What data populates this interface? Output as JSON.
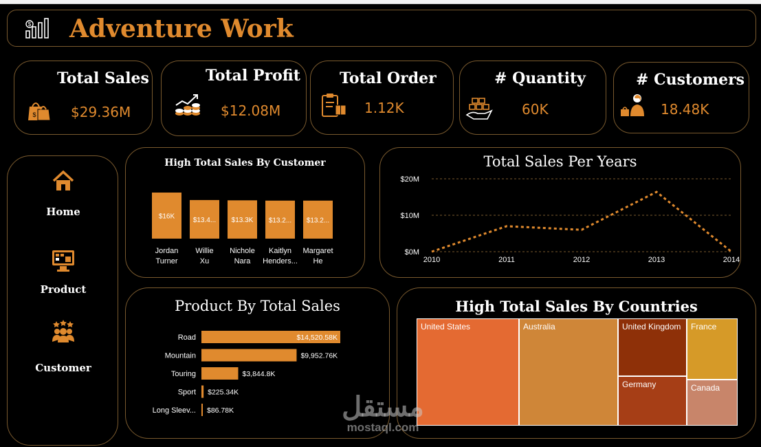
{
  "app": {
    "title": "Adventure Work"
  },
  "kpis": [
    {
      "title": "Total Sales",
      "value": "$29.36M",
      "icon": "shopping-bags-icon"
    },
    {
      "title": "Total Profit",
      "value": "$12.08M",
      "icon": "profit-growth-icon"
    },
    {
      "title": "Total Order",
      "value": "1.12K",
      "icon": "order-clipboard-icon"
    },
    {
      "title": "# Quantity",
      "value": "60K",
      "icon": "boxes-hand-icon"
    },
    {
      "title": "# Customers",
      "value": "18.48K",
      "icon": "customer-person-icon"
    }
  ],
  "nav": {
    "items": [
      {
        "label": "Home",
        "icon": "home-icon"
      },
      {
        "label": "Product",
        "icon": "product-monitor-icon"
      },
      {
        "label": "Customer",
        "icon": "customer-group-icon"
      }
    ]
  },
  "colors": {
    "accent": "#e08a2e",
    "border": "#7a5a2e",
    "background": "#000000"
  },
  "chart_data": [
    {
      "type": "bar",
      "title": "High Total Sales By Customer",
      "categories": [
        "Jordan Turner",
        "Willie Xu",
        "Nichole Nara",
        "Kaitlyn Henders...",
        "Margaret He"
      ],
      "values": [
        16,
        13.4,
        13.3,
        13.2,
        13.2
      ],
      "data_labels": [
        "$16K",
        "$13.4...",
        "$13.3K",
        "$13.2...",
        "$13.2..."
      ],
      "color": "#e08a2e"
    },
    {
      "type": "line",
      "title": "Total Sales Per Years",
      "x": [
        2010,
        2011,
        2012,
        2013,
        2014
      ],
      "values": [
        0,
        7,
        6,
        16.4,
        0
      ],
      "y_ticks": [
        "$0M",
        "$10M",
        "$20M"
      ],
      "ylim": [
        0,
        20
      ],
      "grid": true,
      "line_style": "dotted",
      "color": "#e08a2e"
    },
    {
      "type": "bar",
      "orientation": "horizontal",
      "title": "Product By Total Sales",
      "categories": [
        "Road",
        "Mountain",
        "Touring",
        "Sport",
        "Long Sleev..."
      ],
      "values": [
        14520.58,
        9952.76,
        3844.8,
        225.34,
        86.78
      ],
      "data_labels": [
        "$14,520.58K",
        "$9,952.76K",
        "$3,844.8K",
        "$225.34K",
        "$86.78K"
      ],
      "color": "#e08a2e"
    },
    {
      "type": "treemap",
      "title": "High Total Sales By Countries",
      "categories": [
        "United States",
        "Australia",
        "United Kingdom",
        "Germany",
        "France",
        "Canada"
      ],
      "colors": [
        "#e46a32",
        "#cf8638",
        "#8e3008",
        "#a63e16",
        "#d69a28",
        "#c8856a"
      ]
    }
  ],
  "watermark": {
    "arabic": "مستقل",
    "latin": "mostaql.com"
  }
}
